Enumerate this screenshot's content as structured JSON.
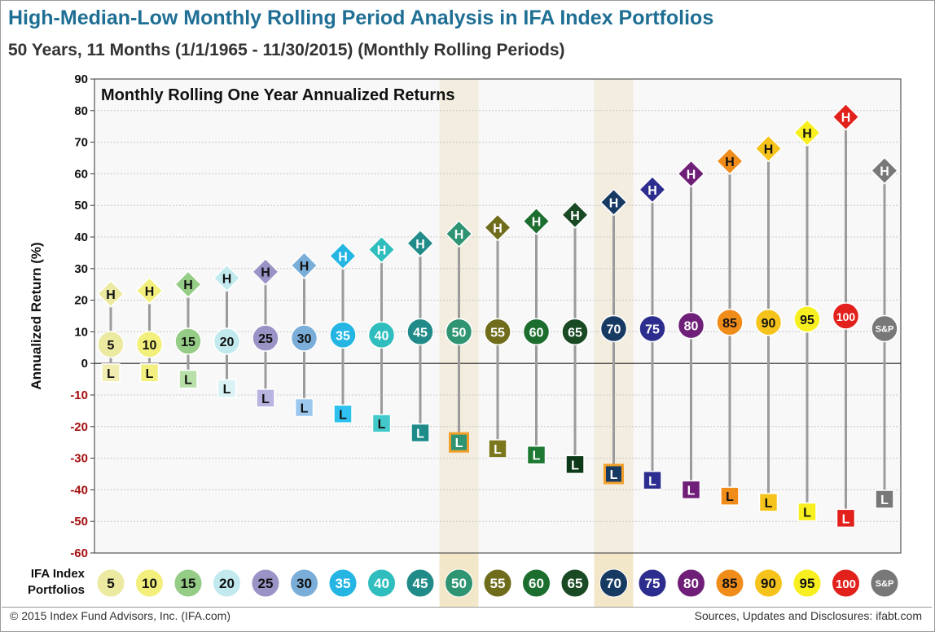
{
  "title": "High-Median-Low Monthly Rolling Period Analysis in IFA Index Portfolios",
  "subtitle": "50 Years, 11 Months (1/1/1965 - 11/30/2015) (Monthly Rolling Periods)",
  "footer": {
    "copyright": "© 2015 Index Fund Advisors, Inc. (IFA.com)",
    "sources": "Sources, Updates and Disclosures: ifabt.com"
  },
  "chart_data": {
    "type": "scatter",
    "title": "Monthly Rolling One Year Annualized Returns",
    "ylabel": "Annualized Return (%)",
    "xlabel": "IFA Index Portfolios",
    "ylim": [
      -60,
      90
    ],
    "yticks": [
      90,
      80,
      70,
      60,
      50,
      40,
      30,
      20,
      10,
      0,
      -10,
      -20,
      -30,
      -40,
      -50,
      -60
    ],
    "grid": true,
    "highlighted_categories": [
      "50",
      "70"
    ],
    "marker_labels": {
      "high": "H",
      "low": "L"
    },
    "categories": [
      "5",
      "10",
      "15",
      "20",
      "25",
      "30",
      "35",
      "40",
      "45",
      "50",
      "55",
      "60",
      "65",
      "70",
      "75",
      "80",
      "85",
      "90",
      "95",
      "100",
      "S&P"
    ],
    "high": [
      22,
      23,
      25,
      27,
      29,
      31,
      34,
      36,
      38,
      41,
      43,
      45,
      47,
      51,
      55,
      60,
      64,
      68,
      73,
      78,
      61
    ],
    "median": [
      6,
      6,
      7,
      7,
      8,
      8,
      9,
      9,
      10,
      10,
      10,
      10,
      10,
      11,
      11,
      12,
      13,
      13,
      14,
      15,
      11
    ],
    "low": [
      -3,
      -3,
      -5,
      -8,
      -11,
      -14,
      -16,
      -19,
      -22,
      -25,
      -27,
      -29,
      -32,
      -35,
      -37,
      -40,
      -42,
      -44,
      -47,
      -49,
      -43
    ],
    "colors": [
      "#ece9a0",
      "#f3ef7c",
      "#95cc86",
      "#c2eaee",
      "#9a94c6",
      "#7aaed8",
      "#24b5e3",
      "#2fbdbd",
      "#218b89",
      "#2f9472",
      "#6f6d1c",
      "#1c6e2f",
      "#1a4a24",
      "#173a63",
      "#2d2d8f",
      "#6f1f78",
      "#f08c1a",
      "#f5c31c",
      "#f7ef1f",
      "#e2211c",
      "#787878"
    ],
    "low_box_colors": [
      "#f1ecaf",
      "#f3ee80",
      "#b8e0a8",
      "#d9f2f4",
      "#b8b4e0",
      "#9cc8ee",
      "#2ec1ef",
      "#43c9c9",
      "#1f8b89",
      "#2f9472",
      "#7b771d",
      "#1e7a33",
      "#0f3a1a",
      "#173a63",
      "#2d2d8f",
      "#6f1f78",
      "#f08c1a",
      "#f5c31c",
      "#f7ef1f",
      "#e2211c",
      "#787878"
    ]
  }
}
